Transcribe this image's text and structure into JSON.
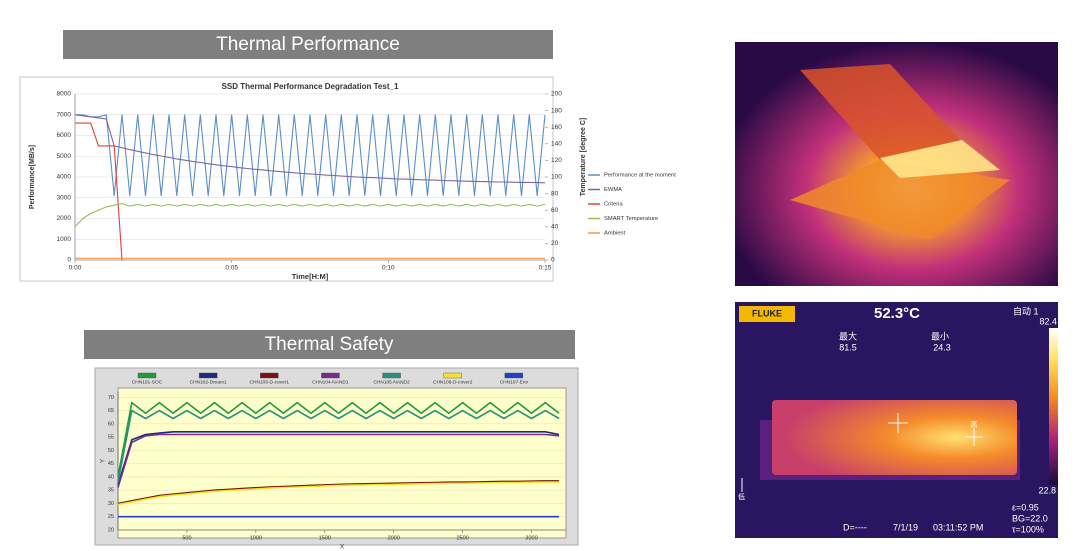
{
  "headers": {
    "performance": "Thermal Performance",
    "safety": "Thermal Safety"
  },
  "chart_data": [
    {
      "type": "line",
      "title": "SSD Thermal Performance Degradation Test_1",
      "x_label": "Time[H:M]",
      "y_label": "Performance[MB/s]",
      "y2_label": "Temperature [degree C]",
      "xlim": [
        0,
        15
      ],
      "xticks": [
        {
          "value": 0,
          "label": "0:00"
        },
        {
          "value": 5,
          "label": "0:05"
        },
        {
          "value": 10,
          "label": "0:10"
        },
        {
          "value": 15,
          "label": "0:15"
        }
      ],
      "ylim": [
        0,
        8000
      ],
      "yticks": [
        0,
        1000,
        2000,
        3000,
        4000,
        5000,
        6000,
        7000,
        8000
      ],
      "y2lim": [
        0,
        200
      ],
      "y2ticks": [
        0,
        20,
        40,
        60,
        80,
        100,
        120,
        140,
        160,
        180,
        200
      ],
      "grid": true,
      "legend": "right",
      "x": [
        0,
        0.25,
        0.5,
        0.75,
        1,
        1.25,
        1.5,
        1.75,
        2,
        2.25,
        2.5,
        2.75,
        3,
        3.25,
        3.5,
        3.75,
        4,
        4.25,
        4.5,
        4.75,
        5,
        5.25,
        5.5,
        5.75,
        6,
        6.25,
        6.5,
        6.75,
        7,
        7.25,
        7.5,
        7.75,
        8,
        8.25,
        8.5,
        8.75,
        9,
        9.25,
        9.5,
        9.75,
        10,
        10.25,
        10.5,
        10.75,
        11,
        11.25,
        11.5,
        11.75,
        12,
        12.25,
        12.5,
        12.75,
        13,
        13.25,
        13.5,
        13.75,
        14,
        14.25,
        14.5,
        14.75,
        15
      ],
      "series": [
        {
          "name": "Performance at the moment",
          "color": "#5b8fc7",
          "values": [
            7000,
            7000,
            6900,
            6900,
            7000,
            3100,
            7000,
            3100,
            7000,
            3100,
            7000,
            3100,
            7000,
            3100,
            7000,
            3100,
            7000,
            3100,
            7000,
            3100,
            7000,
            3100,
            7000,
            3100,
            7000,
            3100,
            7000,
            3100,
            7000,
            3100,
            7000,
            3100,
            7000,
            3100,
            7000,
            3100,
            7000,
            3100,
            7000,
            3100,
            7000,
            3100,
            7000,
            3100,
            7000,
            3100,
            7000,
            3100,
            7000,
            3100,
            7000,
            3100,
            7000,
            3100,
            7000,
            3100,
            7000,
            3100,
            7000,
            3100,
            7000
          ]
        },
        {
          "name": "EWMA",
          "color": "#8064a2",
          "values": [
            7000,
            6950,
            6900,
            6850,
            6800,
            5500,
            5410,
            5320,
            5240,
            5160,
            5080,
            5010,
            4940,
            4870,
            4810,
            4750,
            4700,
            4640,
            4590,
            4540,
            4500,
            4450,
            4410,
            4370,
            4340,
            4300,
            4270,
            4230,
            4200,
            4170,
            4150,
            4120,
            4090,
            4070,
            4050,
            4020,
            4000,
            3980,
            3970,
            3950,
            3930,
            3910,
            3900,
            3890,
            3870,
            3860,
            3850,
            3830,
            3820,
            3810,
            3800,
            3790,
            3780,
            3770,
            3760,
            3760,
            3750,
            3740,
            3740,
            3730,
            3720
          ]
        },
        {
          "name": "Criteria",
          "color": "#e0403a",
          "values": [
            6600,
            6600,
            6600,
            5500,
            5500,
            5500,
            0,
            null,
            null,
            null,
            null,
            null,
            null,
            null,
            null,
            null,
            null,
            null,
            null,
            null,
            null,
            null,
            null,
            null,
            null,
            null,
            null,
            null,
            null,
            null,
            null,
            null,
            null,
            null,
            null,
            null,
            null,
            null,
            null,
            null,
            null,
            null,
            null,
            null,
            null,
            null,
            null,
            null,
            null,
            null,
            null,
            null,
            null,
            null,
            null,
            null,
            null,
            null,
            null,
            null,
            null
          ]
        },
        {
          "name": "SMART Temperature",
          "color": "#9bbb59",
          "axis": "y2",
          "values": [
            40,
            50,
            56,
            60,
            64,
            66,
            68,
            65,
            67,
            65,
            67,
            65,
            67,
            65,
            67,
            65,
            67,
            65,
            67,
            65,
            67,
            65,
            67,
            65,
            67,
            65,
            67,
            65,
            67,
            65,
            67,
            65,
            67,
            65,
            67,
            65,
            67,
            65,
            67,
            65,
            67,
            65,
            67,
            65,
            67,
            65,
            67,
            65,
            67,
            65,
            67,
            65,
            67,
            65,
            67,
            65,
            67,
            65,
            67,
            65,
            67
          ]
        },
        {
          "name": "Ambient",
          "color": "#f79646",
          "axis": "y2",
          "values": [
            2,
            2,
            2,
            2,
            2,
            2,
            2,
            2,
            2,
            2,
            2,
            2,
            2,
            2,
            2,
            2,
            2,
            2,
            2,
            2,
            2,
            2,
            2,
            2,
            2,
            2,
            2,
            2,
            2,
            2,
            2,
            2,
            2,
            2,
            2,
            2,
            2,
            2,
            2,
            2,
            2,
            2,
            2,
            2,
            2,
            2,
            2,
            2,
            2,
            2,
            2,
            2,
            2,
            2,
            2,
            2,
            2,
            2,
            2,
            2,
            2
          ]
        }
      ]
    },
    {
      "type": "line",
      "x_label": "X",
      "y_label": "Y",
      "xlim": [
        0,
        3250
      ],
      "xticks": [
        500,
        1000,
        1500,
        2000,
        2500,
        3000
      ],
      "ylim": [
        20,
        72
      ],
      "yticks": [
        20,
        25,
        30,
        35,
        40,
        45,
        50,
        55,
        60,
        65,
        70
      ],
      "grid": true,
      "legend": "top",
      "x": [
        0,
        100,
        200,
        300,
        400,
        500,
        600,
        700,
        800,
        900,
        1000,
        1100,
        1200,
        1300,
        1400,
        1500,
        1600,
        1700,
        1800,
        1900,
        2000,
        2100,
        2200,
        2300,
        2400,
        2500,
        2600,
        2700,
        2800,
        2900,
        3000,
        3100,
        3200
      ],
      "series": [
        {
          "name": "CHN101-SOC",
          "color": "#1e9a3c",
          "values": [
            40,
            68,
            64,
            68,
            64,
            68,
            64,
            68,
            64,
            68,
            64,
            68,
            64,
            68,
            64,
            68,
            64,
            68,
            64,
            68,
            64,
            68,
            64,
            68,
            64,
            68,
            64,
            68,
            64,
            68,
            64,
            68,
            64
          ]
        },
        {
          "name": "CHN102-Dream1",
          "color": "#1c2a80",
          "values": [
            37,
            54,
            56,
            56.5,
            57,
            57,
            57,
            57,
            57,
            57,
            57,
            57,
            57,
            57,
            57,
            57,
            57,
            57,
            57,
            57,
            57,
            57,
            57,
            57,
            57,
            57,
            57,
            57,
            57,
            57,
            57,
            57,
            56
          ]
        },
        {
          "name": "CHN103-D-cover1",
          "color": "#7a1010",
          "values": [
            30,
            31,
            32,
            33,
            33.5,
            34,
            34.5,
            35,
            35.3,
            35.6,
            35.9,
            36.2,
            36.4,
            36.6,
            36.8,
            37,
            37.2,
            37.3,
            37.4,
            37.5,
            37.6,
            37.7,
            37.8,
            37.9,
            38,
            38,
            38.1,
            38.2,
            38.3,
            38.3,
            38.4,
            38.5,
            38.5
          ]
        },
        {
          "name": "CHN104-NAND1",
          "color": "#7b2a8c",
          "values": [
            36,
            53,
            55.5,
            56,
            56,
            56,
            56,
            56,
            56,
            56,
            56,
            56,
            56,
            56,
            56,
            56,
            56,
            56,
            56,
            56,
            56,
            56,
            56,
            56,
            56,
            56,
            56,
            56,
            56,
            56,
            56,
            56,
            55.5
          ]
        },
        {
          "name": "CHN105-NAND2",
          "color": "#2a8f7e",
          "values": [
            38,
            65,
            62,
            65,
            62,
            65,
            62,
            65,
            62,
            65,
            62,
            65,
            62,
            65,
            62,
            65,
            62,
            65,
            62,
            65,
            62,
            65,
            62,
            65,
            62,
            65,
            62,
            65,
            62,
            65,
            62,
            65,
            62
          ]
        },
        {
          "name": "CHN106-D-cover2",
          "color": "#f2e22a",
          "values": [
            29.6,
            30.6,
            31.6,
            32.6,
            33.1,
            33.6,
            34.1,
            34.6,
            34.9,
            35.2,
            35.5,
            35.8,
            36,
            36.2,
            36.4,
            36.6,
            36.8,
            36.9,
            37,
            37.1,
            37.2,
            37.3,
            37.4,
            37.5,
            37.6,
            37.6,
            37.7,
            37.8,
            37.9,
            37.9,
            38,
            38.1,
            38.1
          ]
        },
        {
          "name": "CHN107-Env",
          "color": "#2340c8",
          "values": [
            25,
            25,
            25,
            25,
            25,
            25,
            25,
            25,
            25,
            25,
            25,
            25,
            25,
            25,
            25,
            25,
            25,
            25,
            25,
            25,
            25,
            25,
            25,
            25,
            25,
            25,
            25,
            25,
            25,
            25,
            25,
            25,
            25
          ]
        }
      ]
    }
  ],
  "thermal_image": {
    "brand": "FLUKE",
    "center_temp": "52.3°C",
    "mode": "自动 1",
    "scale_max": "82.4",
    "max_label": "最大",
    "max_value": "81.5",
    "min_label": "最小",
    "min_value": "24.3",
    "scale_min": "22.8",
    "emissivity": "ε=0.95",
    "background": "BG=22.0",
    "transmission": "τ=100%",
    "distance": "D=----",
    "date": "7/1/19",
    "time": "03:11:52 PM",
    "low_marker": "低",
    "high_marker": "高"
  }
}
